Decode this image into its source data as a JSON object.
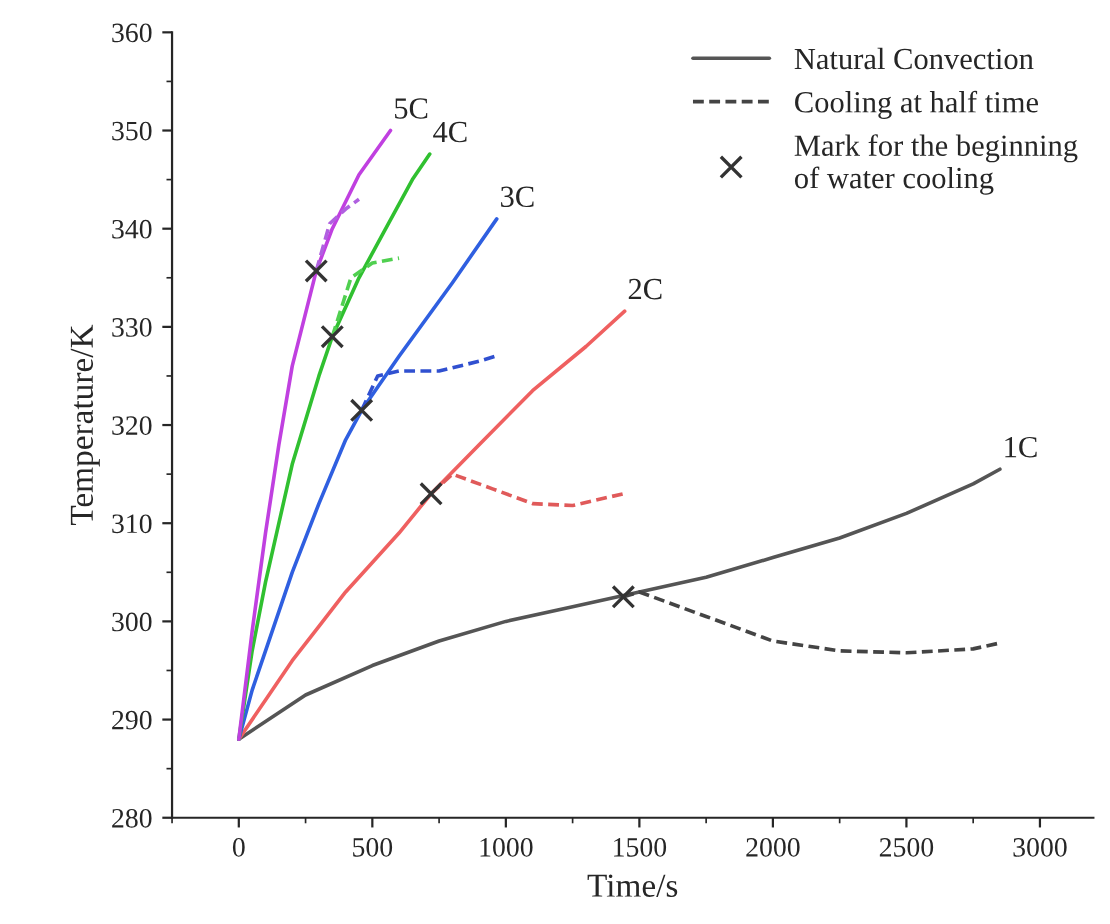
{
  "chart_data": {
    "type": "line",
    "xlabel": "Time/s",
    "ylabel": "Temperature/K",
    "xlim": [
      -250,
      3200
    ],
    "ylim": [
      280,
      360
    ],
    "xticks": [
      0,
      500,
      1000,
      1500,
      2000,
      2500,
      3000
    ],
    "yticks": [
      280,
      290,
      300,
      310,
      320,
      330,
      340,
      350,
      360
    ],
    "grid": false,
    "legend": "top right",
    "marker": "none",
    "series": [
      {
        "name": "Natural Convection",
        "color": "#555555",
        "line_style": "solid",
        "x": [
          0,
          250,
          500,
          750,
          1000,
          1250,
          1500,
          1750,
          2000,
          2250,
          2500,
          2750,
          2850
        ],
        "values": [
          288,
          292.5,
          295.5,
          298,
          300,
          301.5,
          303,
          304.5,
          306.5,
          308.5,
          311,
          314,
          315.5
        ]
      },
      {
        "name": "Cooling at half time",
        "color": "#444444",
        "line_style": "dashed",
        "x": [
          1440,
          1500,
          1750,
          2000,
          2250,
          2500,
          2750,
          2850
        ],
        "values": [
          302.5,
          303,
          300.5,
          298,
          297,
          296.8,
          297.2,
          297.8
        ]
      },
      {
        "color": "#ef6060",
        "line_style": "solid",
        "x": [
          0,
          100,
          200,
          300,
          400,
          500,
          600,
          720,
          900,
          1100,
          1300,
          1445
        ],
        "values": [
          288,
          292,
          296,
          299.5,
          303,
          306,
          309,
          313,
          318,
          323.5,
          328,
          331.6
        ]
      },
      {
        "color": "#e05a5a",
        "line_style": "dashed",
        "x": [
          720,
          800,
          950,
          1100,
          1250,
          1440
        ],
        "values": [
          313,
          315,
          313.5,
          312,
          311.8,
          313
        ]
      },
      {
        "color": "#2f5fe0",
        "line_style": "solid",
        "x": [
          0,
          50,
          100,
          200,
          300,
          400,
          460,
          600,
          800,
          966
        ],
        "values": [
          288,
          293,
          297,
          305,
          312,
          318.5,
          321.5,
          327,
          334.5,
          341
        ]
      },
      {
        "color": "#3050d0",
        "line_style": "dashed",
        "x": [
          460,
          520,
          600,
          750,
          900,
          960
        ],
        "values": [
          321.5,
          325,
          325.5,
          325.5,
          326.5,
          327
        ]
      },
      {
        "color": "#30c030",
        "line_style": "solid",
        "x": [
          0,
          50,
          100,
          200,
          300,
          350,
          450,
          550,
          650,
          715
        ],
        "values": [
          288,
          297,
          304,
          316,
          325,
          329,
          335,
          340,
          345,
          347.6
        ]
      },
      {
        "color": "#50d050",
        "line_style": "dashed",
        "x": [
          350,
          420,
          500,
          600
        ],
        "values": [
          329,
          335,
          336.5,
          337
        ]
      },
      {
        "color": "#c040e0",
        "line_style": "solid",
        "x": [
          0,
          50,
          100,
          150,
          200,
          290,
          350,
          450,
          568
        ],
        "values": [
          288,
          299,
          309,
          318,
          326,
          335.7,
          340,
          345.5,
          350
        ]
      },
      {
        "color": "#b060e0",
        "line_style": "dashed",
        "x": [
          290,
          340,
          400,
          450
        ],
        "values": [
          335.7,
          340.5,
          342,
          343
        ]
      },
      {
        "name": "Mark for the beginning\nof water cooling",
        "type": "scatter",
        "marker": "cross",
        "color": "#333333",
        "x": [
          1440,
          720,
          460,
          350,
          290
        ],
        "values": [
          302.5,
          313,
          321.5,
          329,
          335.7
        ]
      }
    ],
    "annotations": [
      {
        "text": "1C",
        "x": 2850,
        "y": 315.5
      },
      {
        "text": "2C",
        "x": 1445,
        "y": 331.6
      },
      {
        "text": "3C",
        "x": 966,
        "y": 341
      },
      {
        "text": "4C",
        "x": 715,
        "y": 347.6
      },
      {
        "text": "5C",
        "x": 568,
        "y": 350
      }
    ]
  }
}
